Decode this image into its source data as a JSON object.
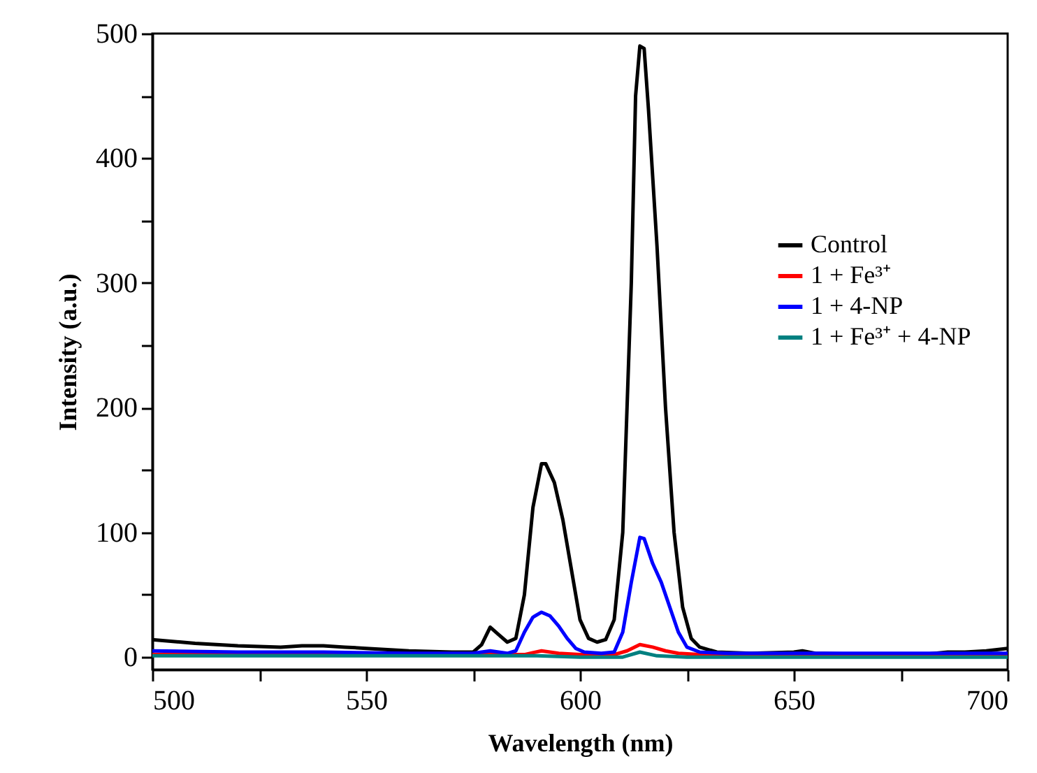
{
  "chart_data": {
    "type": "line",
    "xlabel": "Wavelength (nm)",
    "ylabel": "Intensity (a.u.)",
    "xlim": [
      500,
      700
    ],
    "ylim": [
      -10,
      500
    ],
    "xticks": [
      500,
      {
        "value": 525,
        "label": null
      },
      550,
      {
        "value": 575,
        "label": null
      },
      600,
      {
        "value": 625,
        "label": null
      },
      650,
      {
        "value": 675,
        "label": null
      },
      700
    ],
    "yticks": [
      0,
      {
        "value": 50,
        "label": null
      },
      100,
      {
        "value": 150,
        "label": null
      },
      200,
      {
        "value": 250,
        "label": null
      },
      300,
      {
        "value": 350,
        "label": null
      },
      400,
      {
        "value": 450,
        "label": null
      },
      500
    ],
    "grid": false,
    "legend": "right",
    "line_style": "solid",
    "series": [
      {
        "name": "Control",
        "color": "#000000",
        "x": [
          500,
          510,
          520,
          530,
          535,
          540,
          545,
          550,
          560,
          570,
          575,
          577,
          579,
          581,
          583,
          585,
          587,
          589,
          591,
          592,
          594,
          596,
          598,
          600,
          602,
          604,
          606,
          608,
          610,
          612,
          613,
          614,
          615,
          616,
          618,
          620,
          622,
          624,
          626,
          628,
          632,
          640,
          650,
          652,
          655,
          670,
          680,
          686,
          690,
          695,
          700
        ],
        "values": [
          14,
          11,
          9,
          8,
          9,
          9,
          8,
          7,
          5,
          4,
          4,
          10,
          24,
          18,
          12,
          15,
          50,
          120,
          155,
          155,
          140,
          110,
          70,
          30,
          15,
          12,
          14,
          30,
          100,
          300,
          450,
          490,
          488,
          440,
          330,
          200,
          100,
          40,
          15,
          8,
          4,
          3,
          4,
          5,
          3,
          2,
          2,
          4,
          4,
          5,
          7
        ]
      },
      {
        "name": "1 + Fe³⁺",
        "color": "#ff0000",
        "x": [
          500,
          580,
          587,
          591,
          595,
          600,
          608,
          611,
          614,
          617,
          620,
          623,
          628,
          700
        ],
        "values": [
          2,
          2,
          2,
          5,
          3,
          2,
          2,
          5,
          10,
          8,
          5,
          3,
          2,
          2
        ]
      },
      {
        "name": "1 + 4-NP",
        "color": "#0000ff",
        "x": [
          500,
          520,
          540,
          560,
          575,
          579,
          581,
          583,
          585,
          587,
          589,
          591,
          593,
          595,
          597,
          599,
          601,
          605,
          608,
          610,
          612,
          614,
          615,
          617,
          619,
          621,
          623,
          625,
          628,
          635,
          700
        ],
        "values": [
          5,
          4,
          4,
          3,
          3,
          5,
          4,
          3,
          5,
          20,
          32,
          36,
          33,
          25,
          15,
          7,
          4,
          3,
          4,
          20,
          60,
          96,
          95,
          75,
          60,
          40,
          20,
          8,
          4,
          3,
          3
        ]
      },
      {
        "name": "1 + Fe³⁺ + 4-NP",
        "color": "#008080",
        "x": [
          500,
          590,
          600,
          610,
          614,
          618,
          625,
          700
        ],
        "values": [
          1,
          1,
          0,
          0,
          4,
          1,
          0,
          0
        ]
      }
    ]
  }
}
